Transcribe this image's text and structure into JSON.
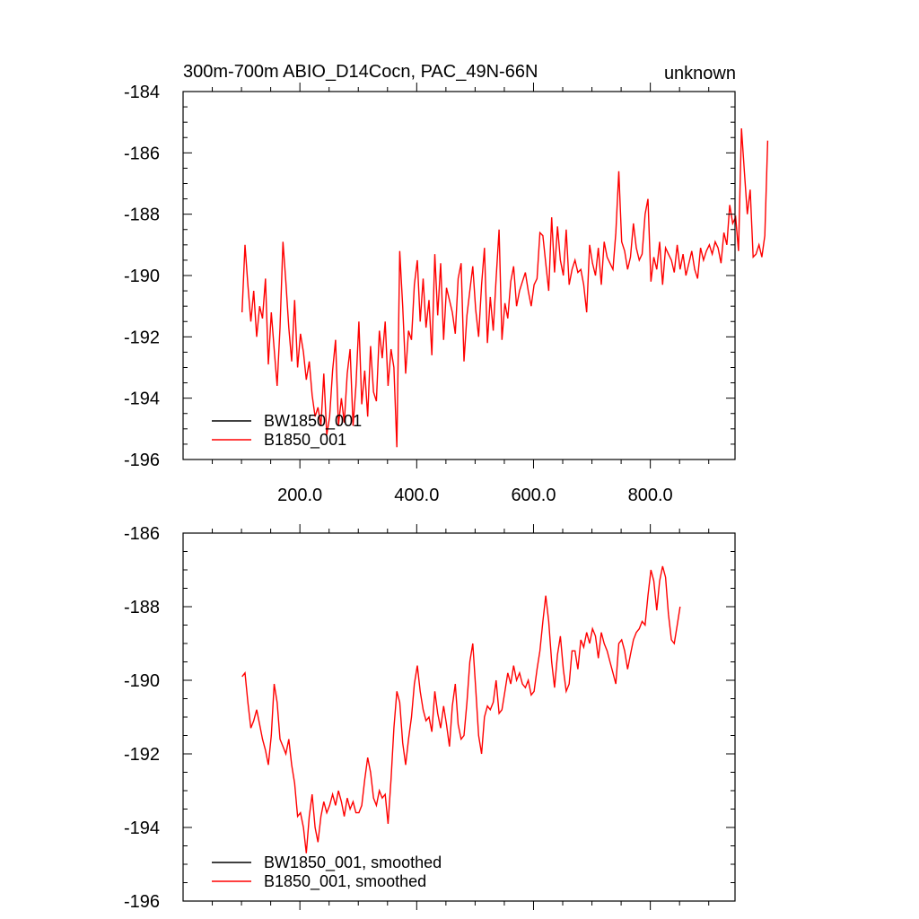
{
  "chart_data": [
    {
      "type": "line",
      "title": "300m-700m ABIO_D14Cocn, PAC_49N-66N",
      "right_title": "unknown",
      "xlabel": "",
      "ylabel": "",
      "xlim": [
        0,
        945
      ],
      "ylim": [
        -196,
        -184
      ],
      "xticks": [
        200,
        400,
        600,
        800
      ],
      "xtick_labels": [
        "200.0",
        "400.0",
        "600.0",
        "800.0"
      ],
      "yticks": [
        -196,
        -194,
        -192,
        -190,
        -188,
        -186,
        -184
      ],
      "ytick_labels": [
        "-196",
        "-194",
        "-192",
        "-190",
        "-188",
        "-186",
        "-184"
      ],
      "legend_position": "bottom-left",
      "series": [
        {
          "name": "BW1850_001",
          "color": "#000000",
          "x": [],
          "y": []
        },
        {
          "name": "B1850_001",
          "color": "#ff0000",
          "x_start": 101,
          "x_step": 5,
          "y": [
            -191.2,
            -189.0,
            -190.3,
            -191.5,
            -190.5,
            -192.0,
            -191.0,
            -191.4,
            -190.1,
            -192.9,
            -191.2,
            -192.4,
            -193.6,
            -191.7,
            -188.9,
            -190.2,
            -191.7,
            -192.8,
            -190.8,
            -193.0,
            -191.9,
            -192.5,
            -193.4,
            -192.8,
            -193.9,
            -194.6,
            -194.3,
            -194.9,
            -193.2,
            -195.2,
            -194.6,
            -193.1,
            -192.1,
            -194.9,
            -194.0,
            -194.8,
            -193.2,
            -192.4,
            -194.9,
            -193.6,
            -191.5,
            -194.2,
            -193.1,
            -194.6,
            -192.3,
            -193.8,
            -194.1,
            -191.8,
            -192.7,
            -191.5,
            -193.6,
            -192.4,
            -193.0,
            -195.6,
            -189.2,
            -191.0,
            -193.2,
            -191.8,
            -192.1,
            -190.3,
            -189.5,
            -191.5,
            -190.1,
            -191.7,
            -190.8,
            -192.6,
            -189.3,
            -191.3,
            -189.6,
            -192.1,
            -190.4,
            -190.8,
            -191.2,
            -191.9,
            -190.1,
            -189.6,
            -192.8,
            -191.3,
            -190.5,
            -189.7,
            -191.1,
            -192.0,
            -190.3,
            -189.1,
            -192.2,
            -190.7,
            -191.8,
            -190.1,
            -188.5,
            -192.1,
            -190.9,
            -191.4,
            -190.2,
            -189.7,
            -191.0,
            -190.5,
            -190.2,
            -189.9,
            -190.5,
            -191.0,
            -190.3,
            -190.1,
            -188.6,
            -188.7,
            -189.6,
            -190.5,
            -188.1,
            -189.9,
            -188.4,
            -189.5,
            -190.0,
            -188.5,
            -190.3,
            -189.8,
            -189.5,
            -189.9,
            -189.8,
            -190.3,
            -191.2,
            -189.0,
            -189.6,
            -190.0,
            -189.1,
            -190.3,
            -188.9,
            -189.4,
            -189.6,
            -189.8,
            -188.6,
            -186.6,
            -188.9,
            -189.2,
            -189.8,
            -189.4,
            -188.3,
            -189.1,
            -189.5,
            -189.3,
            -188.0,
            -187.5,
            -190.2,
            -189.4,
            -189.8,
            -188.9,
            -190.3,
            -189.1,
            -189.3,
            -189.5,
            -189.9,
            -189.0,
            -189.8,
            -189.3,
            -190.0,
            -189.6,
            -189.2,
            -189.8,
            -190.1,
            -189.1,
            -189.5,
            -189.2,
            -189.0,
            -189.3,
            -188.9,
            -189.1,
            -189.6,
            -188.6,
            -189.0,
            -187.7,
            -188.3,
            -188.1,
            -189.2,
            -185.2,
            -186.6,
            -188.0,
            -187.2,
            -189.4,
            -189.3,
            -189.0,
            -189.4,
            -188.7,
            -185.6
          ]
        }
      ]
    },
    {
      "type": "line",
      "title": "",
      "xlabel": "",
      "ylabel": "",
      "xlim": [
        0,
        945
      ],
      "ylim": [
        -196,
        -186
      ],
      "xticks": [
        200,
        400,
        600,
        800
      ],
      "xtick_labels": [],
      "yticks": [
        -196,
        -194,
        -192,
        -190,
        -188,
        -186
      ],
      "ytick_labels": [
        "-196",
        "-194",
        "-192",
        "-190",
        "-188",
        "-186"
      ],
      "legend_position": "bottom-left",
      "series": [
        {
          "name": "BW1850_001, smoothed",
          "color": "#000000",
          "x": [],
          "y": []
        },
        {
          "name": "B1850_001, smoothed",
          "color": "#ff0000",
          "x_start": 101,
          "x_step": 5,
          "y": [
            -189.9,
            -189.8,
            -190.6,
            -191.3,
            -191.1,
            -190.8,
            -191.2,
            -191.6,
            -191.9,
            -192.3,
            -191.5,
            -190.1,
            -190.6,
            -191.6,
            -191.8,
            -192.0,
            -191.6,
            -192.3,
            -192.8,
            -193.7,
            -193.6,
            -194.0,
            -194.7,
            -193.7,
            -193.1,
            -194.0,
            -194.4,
            -193.7,
            -193.3,
            -193.6,
            -193.4,
            -193.1,
            -193.4,
            -193.0,
            -193.3,
            -193.7,
            -193.2,
            -193.5,
            -193.3,
            -193.6,
            -193.6,
            -193.4,
            -192.7,
            -192.1,
            -192.5,
            -193.2,
            -193.4,
            -193.0,
            -193.2,
            -193.1,
            -193.9,
            -192.7,
            -191.3,
            -190.3,
            -190.6,
            -191.7,
            -192.3,
            -191.6,
            -191.0,
            -190.1,
            -189.6,
            -190.3,
            -190.8,
            -191.1,
            -191.0,
            -191.4,
            -190.3,
            -190.9,
            -191.3,
            -190.7,
            -191.2,
            -191.8,
            -190.7,
            -190.1,
            -191.2,
            -191.6,
            -191.5,
            -190.6,
            -189.5,
            -189.0,
            -190.2,
            -191.5,
            -192.0,
            -191.0,
            -190.7,
            -190.8,
            -190.6,
            -190.0,
            -190.9,
            -190.8,
            -190.3,
            -189.8,
            -190.1,
            -189.6,
            -190.0,
            -189.8,
            -190.1,
            -190.2,
            -190.0,
            -190.4,
            -190.3,
            -189.7,
            -189.2,
            -188.4,
            -187.7,
            -188.4,
            -189.5,
            -190.2,
            -189.3,
            -188.8,
            -189.7,
            -190.3,
            -190.1,
            -189.2,
            -189.2,
            -189.7,
            -188.9,
            -189.1,
            -188.7,
            -189.0,
            -188.6,
            -188.8,
            -189.4,
            -188.7,
            -189.0,
            -189.2,
            -189.5,
            -189.8,
            -190.1,
            -189.0,
            -188.9,
            -189.2,
            -189.7,
            -189.3,
            -188.9,
            -188.7,
            -188.6,
            -188.4,
            -188.5,
            -187.7,
            -187.0,
            -187.3,
            -188.1,
            -187.3,
            -186.9,
            -187.2,
            -188.2,
            -188.9,
            -189.0,
            -188.5,
            -188.0
          ]
        }
      ]
    }
  ]
}
